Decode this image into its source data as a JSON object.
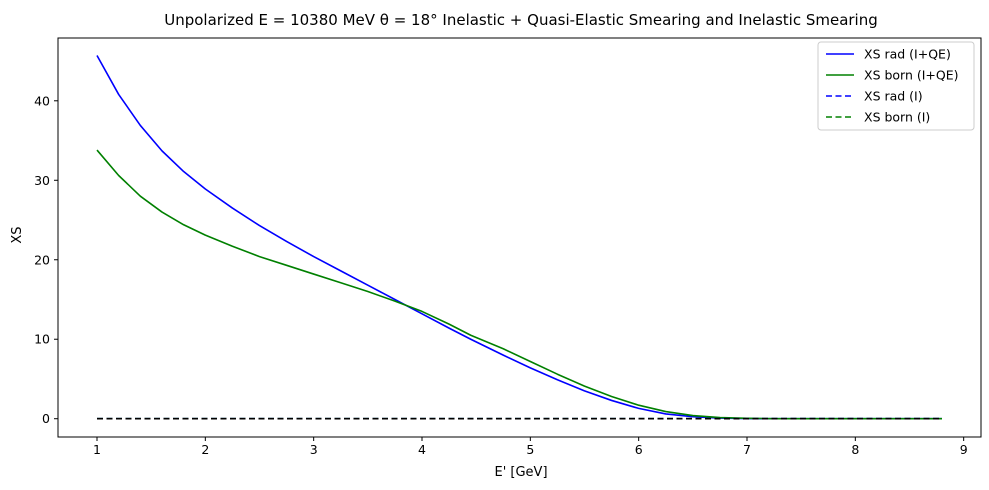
{
  "chart_data": {
    "type": "line",
    "title": "Unpolarized E = 10380 MeV θ = 18° Inelastic + Quasi-Elastic Smearing and Inelastic Smearing",
    "xlabel": "E' [GeV]",
    "ylabel": "XS",
    "xlim": [
      0.64,
      9.16
    ],
    "ylim": [
      -2.3,
      47.9
    ],
    "xticks": [
      1,
      2,
      3,
      4,
      5,
      6,
      7,
      8,
      9
    ],
    "yticks": [
      0,
      10,
      20,
      30,
      40
    ],
    "grid": false,
    "legend_position": "top-right",
    "series": [
      {
        "name": "XS rad (I+QE)",
        "color": "#0000ff",
        "linestyle": "solid",
        "x": [
          1.0,
          1.2,
          1.4,
          1.6,
          1.8,
          2.0,
          2.25,
          2.5,
          2.75,
          3.0,
          3.25,
          3.5,
          3.75,
          4.0,
          4.25,
          4.45,
          4.75,
          5.0,
          5.25,
          5.5,
          5.75,
          6.0,
          6.25,
          6.5,
          6.75,
          7.0,
          7.25,
          7.5,
          8.0,
          8.5,
          8.8
        ],
        "y": [
          45.7,
          40.8,
          36.9,
          33.7,
          31.1,
          28.9,
          26.5,
          24.3,
          22.3,
          20.4,
          18.6,
          16.8,
          15.0,
          13.2,
          11.4,
          10.0,
          8.0,
          6.4,
          4.9,
          3.5,
          2.3,
          1.3,
          0.6,
          0.25,
          0.08,
          0.02,
          0.0,
          0.0,
          0.0,
          0.0,
          0.0
        ]
      },
      {
        "name": "XS born (I+QE)",
        "color": "#008000",
        "linestyle": "solid",
        "x": [
          1.0,
          1.2,
          1.4,
          1.6,
          1.8,
          2.0,
          2.25,
          2.5,
          2.75,
          3.0,
          3.25,
          3.5,
          3.75,
          4.0,
          4.25,
          4.45,
          4.75,
          5.0,
          5.25,
          5.5,
          5.75,
          6.0,
          6.25,
          6.5,
          6.75,
          7.0,
          7.25,
          7.5,
          8.0,
          8.5,
          8.8
        ],
        "y": [
          33.8,
          30.6,
          28.0,
          26.0,
          24.4,
          23.1,
          21.7,
          20.4,
          19.3,
          18.2,
          17.1,
          16.0,
          14.8,
          13.5,
          11.9,
          10.5,
          8.8,
          7.2,
          5.6,
          4.1,
          2.8,
          1.7,
          0.9,
          0.4,
          0.15,
          0.05,
          0.01,
          0.0,
          0.0,
          0.0,
          0.0
        ]
      },
      {
        "name": "XS rad (I)",
        "color": "#0000ff",
        "linestyle": "dashed",
        "x": [
          1.0,
          8.8
        ],
        "y": [
          0.0,
          0.0
        ]
      },
      {
        "name": "XS born (I)",
        "color": "#008000",
        "linestyle": "dashed",
        "x": [
          1.0,
          8.8
        ],
        "y": [
          0.0,
          0.0
        ]
      }
    ]
  }
}
